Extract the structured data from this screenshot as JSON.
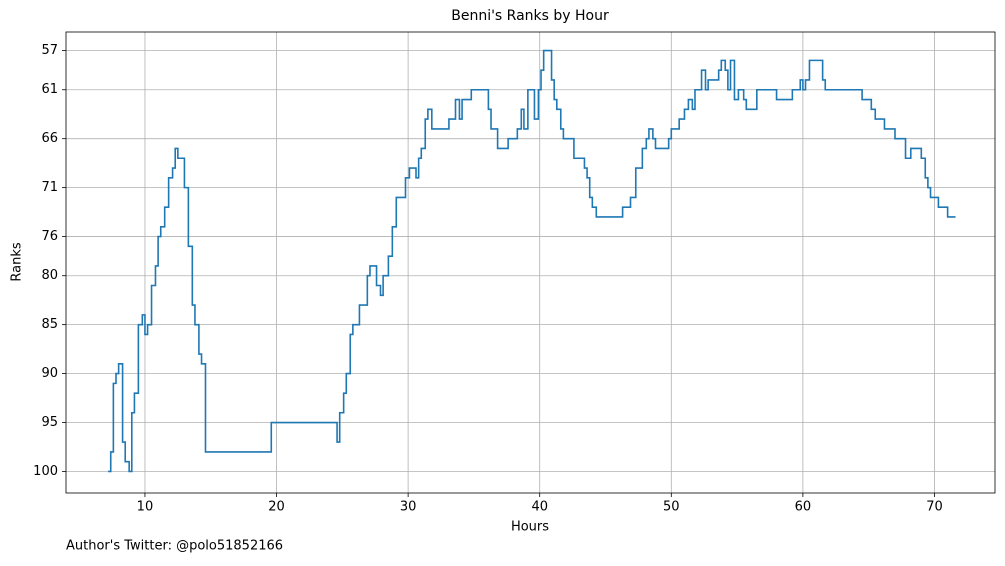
{
  "chart_data": {
    "type": "step",
    "title": "Benni's Ranks by Hour",
    "x_label": "Hours",
    "y_label": "Ranks",
    "footnote": "Author's Twitter: @polo51852166",
    "x": [
      7.2,
      7.4,
      7.6,
      7.8,
      8.0,
      8.3,
      8.5,
      8.8,
      9.0,
      9.2,
      9.5,
      9.8,
      10.0,
      10.2,
      10.5,
      10.8,
      11.0,
      11.2,
      11.5,
      11.8,
      12.1,
      12.3,
      12.5,
      13.0,
      13.3,
      13.6,
      13.8,
      14.1,
      14.3,
      14.6,
      19.6,
      24.6,
      24.8,
      25.1,
      25.3,
      25.6,
      25.8,
      26.3,
      26.9,
      27.1,
      27.6,
      27.9,
      28.1,
      28.5,
      28.8,
      29.1,
      29.8,
      30.1,
      30.6,
      30.8,
      31.0,
      31.3,
      31.5,
      31.8,
      33.1,
      33.6,
      33.9,
      34.1,
      34.8,
      36.1,
      36.3,
      36.8,
      37.6,
      38.3,
      38.6,
      38.8,
      39.1,
      39.6,
      39.9,
      40.1,
      40.3,
      40.9,
      41.1,
      41.3,
      41.6,
      41.8,
      42.6,
      43.4,
      43.6,
      43.8,
      44.0,
      44.3,
      46.3,
      46.9,
      47.3,
      47.8,
      48.1,
      48.3,
      48.6,
      48.8,
      49.8,
      50.0,
      50.6,
      51.0,
      51.3,
      51.6,
      51.8,
      52.3,
      52.6,
      52.8,
      53.6,
      53.8,
      54.1,
      54.3,
      54.5,
      54.8,
      55.1,
      55.5,
      55.7,
      56.5,
      58.0,
      59.2,
      59.8,
      60.0,
      60.2,
      60.5,
      61.5,
      61.7,
      64.5,
      65.2,
      65.5,
      66.2,
      67.0,
      67.8,
      68.2,
      69.0,
      69.3,
      69.5,
      69.7,
      70.3,
      71.0,
      71.6
    ],
    "series": [
      {
        "color": "#1f77b4",
        "values": [
          100,
          98,
          91,
          90,
          89,
          97,
          99,
          100,
          94,
          92,
          85,
          84,
          86,
          85,
          81,
          79,
          76,
          75,
          73,
          70,
          69,
          67,
          68,
          71,
          77,
          83,
          85,
          88,
          89,
          98,
          95,
          97,
          94,
          92,
          90,
          86,
          85,
          83,
          80,
          79,
          81,
          82,
          80,
          78,
          75,
          72,
          70,
          69,
          70,
          68,
          67,
          64,
          63,
          65,
          64,
          62,
          64,
          62,
          61,
          63,
          65,
          67,
          66,
          65,
          63,
          65,
          61,
          64,
          61,
          59,
          57,
          60,
          62,
          63,
          65,
          66,
          68,
          69,
          70,
          72,
          73,
          74,
          73,
          72,
          69,
          67,
          66,
          65,
          66,
          67,
          66,
          65,
          64,
          63,
          62,
          63,
          61,
          59,
          61,
          60,
          59,
          58,
          59,
          61,
          58,
          62,
          61,
          62,
          63,
          61,
          62,
          61,
          60,
          61,
          60,
          58,
          60,
          61,
          62,
          63,
          64,
          65,
          66,
          68,
          67,
          68,
          70,
          71,
          72,
          73,
          74,
          74
        ]
      }
    ],
    "xlim": [
      4.0,
      74.6
    ],
    "ylim": [
      102.2,
      55.1
    ],
    "xticks": [
      10,
      20,
      30,
      40,
      50,
      60,
      70
    ],
    "yticks": [
      57,
      61,
      66,
      71,
      76,
      80,
      85,
      90,
      95,
      100
    ],
    "grid": true
  }
}
